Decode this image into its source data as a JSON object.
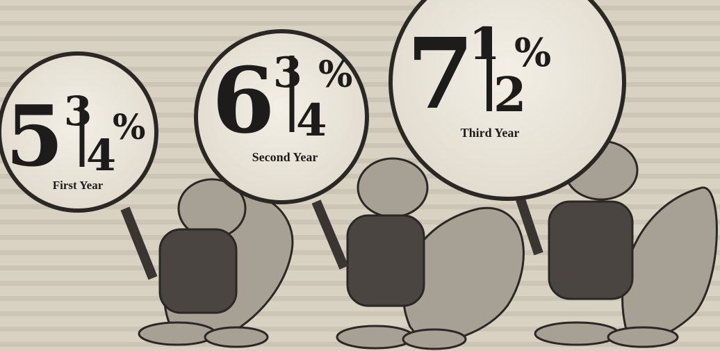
{
  "rates": [
    {
      "whole": "5",
      "numerator": "3",
      "denominator": "4",
      "percent": "%",
      "label": "First Year"
    },
    {
      "whole": "6",
      "numerator": "3",
      "denominator": "4",
      "percent": "%",
      "label": "Second Year"
    },
    {
      "whole": "7",
      "numerator": "1",
      "denominator": "2",
      "percent": "%",
      "label": "Third Year"
    }
  ]
}
